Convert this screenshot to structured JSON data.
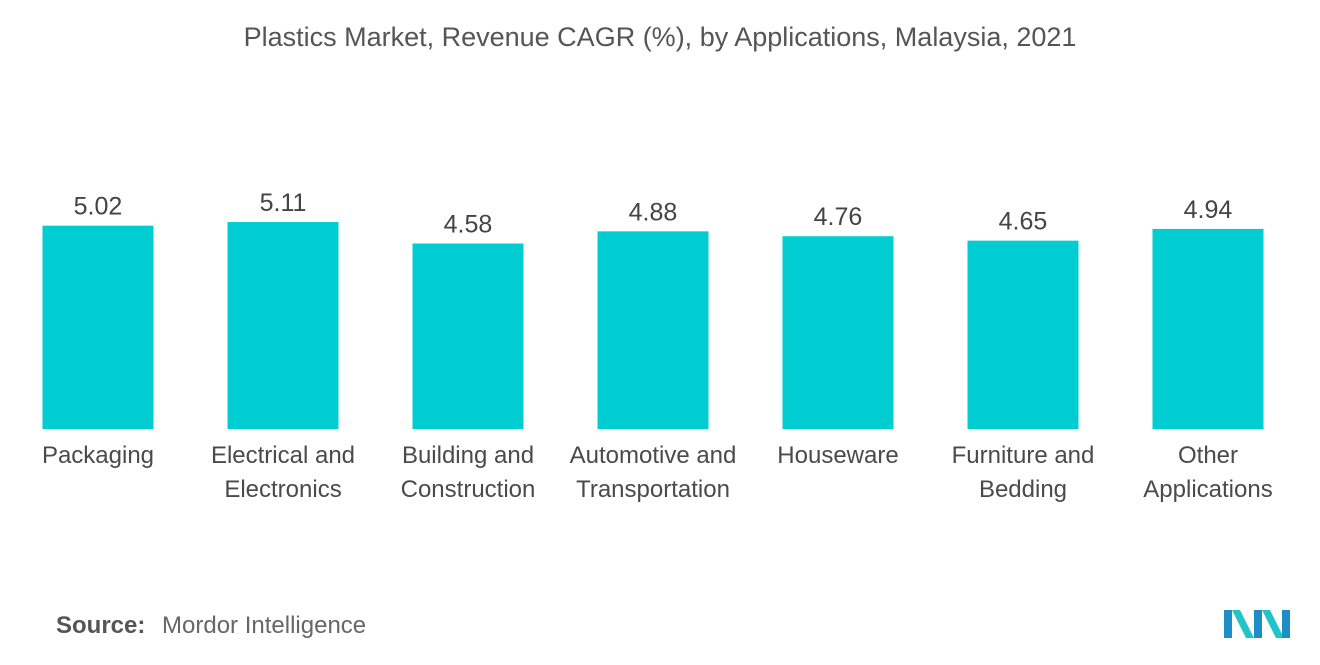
{
  "chart_data": {
    "type": "bar",
    "title": "Plastics Market, Revenue CAGR (%), by Applications, Malaysia, 2021",
    "categories": [
      "Packaging",
      "Electrical and Electronics",
      "Building and Construction",
      "Automotive and Transportation",
      "Houseware",
      "Furniture and Bedding",
      "Other Applications"
    ],
    "values": [
      5.02,
      5.11,
      4.58,
      4.88,
      4.76,
      4.65,
      4.94
    ],
    "xlabel": "",
    "ylabel": "",
    "ylim": [
      0,
      5.11
    ],
    "grid": false,
    "bar_color": "#00CDD1"
  },
  "source": {
    "label": "Source:",
    "text": "Mordor Intelligence"
  },
  "logo": {
    "icon": "mordor-intelligence-logo-icon",
    "colors": [
      "#1E8FC6",
      "#22C4C9"
    ]
  }
}
